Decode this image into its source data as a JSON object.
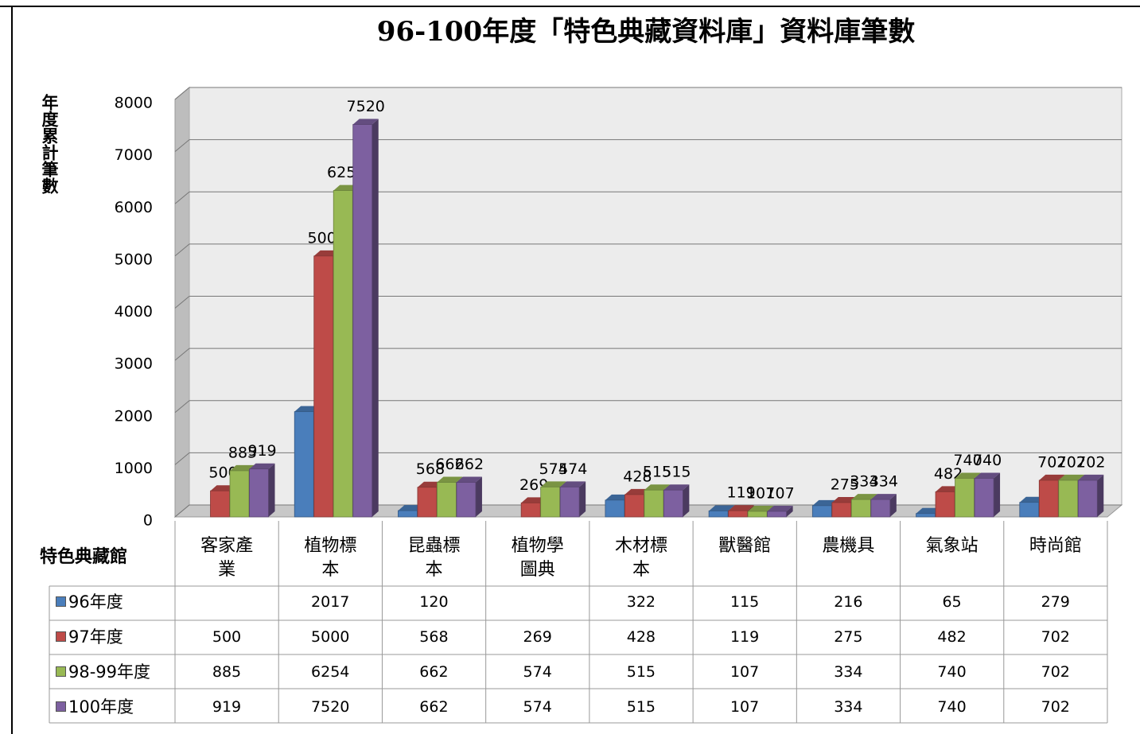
{
  "chart_data": {
    "type": "bar3d",
    "title": "96-100年度「特色典藏資料庫」資料庫筆數",
    "y_label": "年度累計筆數",
    "table_header": "特色典藏館",
    "categories": [
      "客家產業",
      "植物標本",
      "昆蟲標本",
      "植物學圖典",
      "木材標本",
      "獸醫館",
      "農機具",
      "氣象站",
      "時尚館"
    ],
    "series": [
      {
        "name": "96年度",
        "color": "#4a7ebb",
        "values": [
          null,
          2017,
          120,
          null,
          322,
          115,
          216,
          65,
          279
        ]
      },
      {
        "name": "97年度",
        "color": "#be4b48",
        "values": [
          500,
          5000,
          568,
          269,
          428,
          119,
          275,
          482,
          702
        ]
      },
      {
        "name": "98-99年度",
        "color": "#98b954",
        "values": [
          885,
          6254,
          662,
          574,
          515,
          107,
          334,
          740,
          702
        ]
      },
      {
        "name": "100年度",
        "color": "#7d60a0",
        "values": [
          919,
          7520,
          662,
          574,
          515,
          107,
          334,
          740,
          702
        ]
      }
    ],
    "ylim": [
      0,
      8000
    ],
    "yticks": [
      0,
      1000,
      2000,
      3000,
      4000,
      5000,
      6000,
      7000,
      8000
    ],
    "grid": true
  }
}
